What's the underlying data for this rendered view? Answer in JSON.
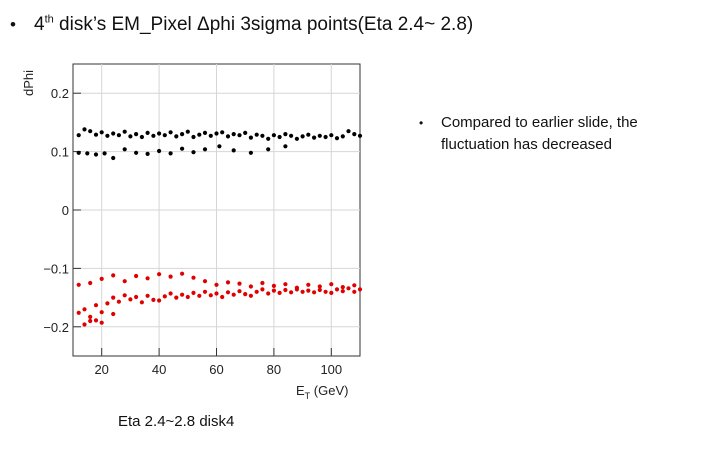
{
  "slide": {
    "title_prefix": "4",
    "title_sup": "th",
    "title_rest": " disk’s EM_Pixel Δphi 3sigma points(Eta 2.4~ 2.8)",
    "note": "Compared to earlier slide, the fluctuation has decreased",
    "caption": "Eta 2.4~2.8 disk4"
  },
  "chart_data": {
    "type": "scatter",
    "title": "",
    "xlabel_main": "E",
    "xlabel_sub": "T",
    "xlabel_rest": " (GeV)",
    "ylabel": "dPhi",
    "xlim": [
      10,
      110
    ],
    "ylim": [
      -0.25,
      0.25
    ],
    "xticks": [
      20,
      40,
      60,
      80,
      100
    ],
    "yticks": [
      -0.2,
      -0.1,
      0,
      0.1,
      0.2
    ],
    "ytick_labels": [
      "−0.2",
      "−0.1",
      "0",
      "0.1",
      "0.2"
    ],
    "grid": true,
    "legend": false,
    "series": [
      {
        "color": "#000000",
        "points": [
          [
            12,
            0.128
          ],
          [
            14,
            0.138
          ],
          [
            16,
            0.135
          ],
          [
            18,
            0.129
          ],
          [
            20,
            0.133
          ],
          [
            22,
            0.127
          ],
          [
            24,
            0.131
          ],
          [
            26,
            0.128
          ],
          [
            28,
            0.134
          ],
          [
            30,
            0.126
          ],
          [
            32,
            0.13
          ],
          [
            34,
            0.125
          ],
          [
            36,
            0.132
          ],
          [
            38,
            0.127
          ],
          [
            40,
            0.131
          ],
          [
            42,
            0.128
          ],
          [
            44,
            0.133
          ],
          [
            46,
            0.126
          ],
          [
            48,
            0.13
          ],
          [
            50,
            0.134
          ],
          [
            52,
            0.125
          ],
          [
            54,
            0.129
          ],
          [
            56,
            0.132
          ],
          [
            58,
            0.127
          ],
          [
            60,
            0.131
          ],
          [
            62,
            0.133
          ],
          [
            64,
            0.126
          ],
          [
            66,
            0.13
          ],
          [
            68,
            0.128
          ],
          [
            70,
            0.132
          ],
          [
            72,
            0.124
          ],
          [
            74,
            0.129
          ],
          [
            76,
            0.127
          ],
          [
            78,
            0.122
          ],
          [
            80,
            0.128
          ],
          [
            82,
            0.125
          ],
          [
            84,
            0.13
          ],
          [
            86,
            0.127
          ],
          [
            88,
            0.122
          ],
          [
            90,
            0.126
          ],
          [
            92,
            0.129
          ],
          [
            94,
            0.124
          ],
          [
            96,
            0.127
          ],
          [
            98,
            0.125
          ],
          [
            100,
            0.128
          ],
          [
            102,
            0.123
          ],
          [
            104,
            0.126
          ],
          [
            106,
            0.135
          ],
          [
            108,
            0.13
          ],
          [
            110,
            0.127
          ],
          [
            12,
            0.098
          ],
          [
            15,
            0.097
          ],
          [
            18,
            0.095
          ],
          [
            21,
            0.097
          ],
          [
            24,
            0.089
          ],
          [
            28,
            0.104
          ],
          [
            32,
            0.098
          ],
          [
            36,
            0.096
          ],
          [
            40,
            0.101
          ],
          [
            44,
            0.097
          ],
          [
            48,
            0.105
          ],
          [
            52,
            0.099
          ],
          [
            56,
            0.104
          ],
          [
            61,
            0.109
          ],
          [
            66,
            0.102
          ],
          [
            72,
            0.098
          ],
          [
            78,
            0.104
          ],
          [
            84,
            0.109
          ]
        ]
      },
      {
        "color": "#e00000",
        "points": [
          [
            12,
            -0.176
          ],
          [
            14,
            -0.17
          ],
          [
            16,
            -0.183
          ],
          [
            18,
            -0.163
          ],
          [
            20,
            -0.175
          ],
          [
            22,
            -0.16
          ],
          [
            24,
            -0.15
          ],
          [
            26,
            -0.157
          ],
          [
            28,
            -0.146
          ],
          [
            30,
            -0.153
          ],
          [
            32,
            -0.149
          ],
          [
            34,
            -0.158
          ],
          [
            36,
            -0.147
          ],
          [
            38,
            -0.154
          ],
          [
            40,
            -0.155
          ],
          [
            42,
            -0.148
          ],
          [
            44,
            -0.143
          ],
          [
            46,
            -0.15
          ],
          [
            48,
            -0.145
          ],
          [
            50,
            -0.149
          ],
          [
            52,
            -0.142
          ],
          [
            54,
            -0.147
          ],
          [
            56,
            -0.14
          ],
          [
            58,
            -0.146
          ],
          [
            60,
            -0.143
          ],
          [
            62,
            -0.149
          ],
          [
            64,
            -0.141
          ],
          [
            66,
            -0.145
          ],
          [
            68,
            -0.139
          ],
          [
            70,
            -0.144
          ],
          [
            72,
            -0.147
          ],
          [
            74,
            -0.14
          ],
          [
            76,
            -0.136
          ],
          [
            78,
            -0.143
          ],
          [
            80,
            -0.138
          ],
          [
            82,
            -0.142
          ],
          [
            84,
            -0.137
          ],
          [
            86,
            -0.141
          ],
          [
            88,
            -0.136
          ],
          [
            90,
            -0.14
          ],
          [
            92,
            -0.138
          ],
          [
            94,
            -0.141
          ],
          [
            96,
            -0.137
          ],
          [
            98,
            -0.14
          ],
          [
            100,
            -0.142
          ],
          [
            102,
            -0.136
          ],
          [
            104,
            -0.139
          ],
          [
            106,
            -0.134
          ],
          [
            108,
            -0.14
          ],
          [
            110,
            -0.136
          ],
          [
            12,
            -0.128
          ],
          [
            16,
            -0.125
          ],
          [
            20,
            -0.118
          ],
          [
            24,
            -0.112
          ],
          [
            28,
            -0.122
          ],
          [
            32,
            -0.113
          ],
          [
            36,
            -0.117
          ],
          [
            40,
            -0.11
          ],
          [
            44,
            -0.114
          ],
          [
            48,
            -0.109
          ],
          [
            52,
            -0.116
          ],
          [
            56,
            -0.122
          ],
          [
            60,
            -0.128
          ],
          [
            64,
            -0.124
          ],
          [
            68,
            -0.126
          ],
          [
            72,
            -0.131
          ],
          [
            76,
            -0.125
          ],
          [
            80,
            -0.13
          ],
          [
            84,
            -0.127
          ],
          [
            88,
            -0.133
          ],
          [
            92,
            -0.128
          ],
          [
            96,
            -0.131
          ],
          [
            100,
            -0.127
          ],
          [
            104,
            -0.132
          ],
          [
            108,
            -0.129
          ],
          [
            14,
            -0.196
          ],
          [
            16,
            -0.19
          ],
          [
            18,
            -0.189
          ],
          [
            20,
            -0.193
          ],
          [
            24,
            -0.178
          ]
        ]
      }
    ]
  }
}
